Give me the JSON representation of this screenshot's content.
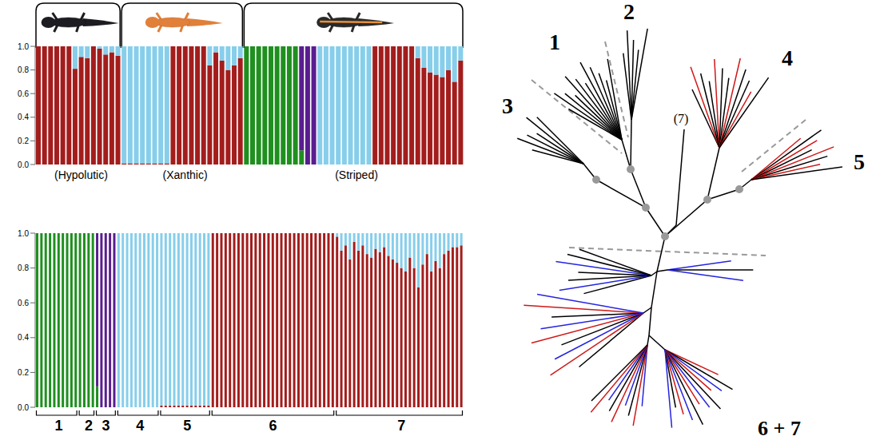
{
  "chart_data": [
    {
      "type": "bar",
      "stacked": true,
      "categories": [
        null,
        null,
        null,
        null,
        null,
        null,
        null,
        "(Hypolutic)",
        null,
        null,
        null,
        null,
        null,
        null,
        null,
        null,
        null,
        null,
        null,
        null,
        null,
        null,
        null,
        null,
        "(Xanthic)",
        null,
        null,
        null,
        null,
        null,
        null,
        null,
        null,
        null,
        null,
        null,
        null,
        null,
        null,
        null,
        null,
        null,
        null,
        null,
        null,
        null,
        null,
        null,
        null,
        null,
        null,
        null,
        "(Striped)",
        null,
        null,
        null,
        null,
        null,
        null,
        null,
        null,
        null,
        null,
        null,
        null,
        null,
        null,
        null,
        null,
        null
      ],
      "ylim": [
        0,
        1
      ],
      "yticks": [
        {
          "value": 0,
          "label": "0.0"
        },
        0.2,
        0.4,
        0.6,
        0.8,
        {
          "value": 1,
          "label": "1.0"
        }
      ],
      "series": [
        {
          "color": "#1f8f1f",
          "values": [
            0,
            0,
            0,
            0,
            0,
            0,
            0,
            0,
            0,
            0,
            0,
            0,
            0,
            0,
            0,
            0,
            0,
            0,
            0,
            0,
            0,
            0,
            0,
            0,
            0,
            0,
            0,
            0,
            0,
            0,
            0,
            0,
            0,
            0,
            1,
            1,
            1,
            1,
            1,
            1,
            1,
            1,
            1,
            0.12,
            0,
            0,
            0,
            0,
            0,
            0,
            0,
            0,
            0,
            0,
            0,
            0,
            0,
            0,
            0,
            0,
            0,
            0,
            0,
            0,
            0,
            0,
            0,
            0,
            0,
            0
          ]
        },
        {
          "color": "#5a1d8f",
          "values": [
            0,
            0,
            0,
            0,
            0,
            0,
            0,
            0,
            0,
            0,
            0,
            0,
            0,
            0,
            0,
            0,
            0,
            0,
            0,
            0,
            0,
            0,
            0,
            0,
            0,
            0,
            0,
            0,
            0,
            0,
            0,
            0,
            0,
            0,
            0,
            0,
            0,
            0,
            0,
            0,
            0,
            0,
            0,
            0.88,
            1,
            1,
            0,
            0,
            0,
            0,
            0,
            0,
            0,
            0,
            0,
            0,
            0,
            0,
            0,
            0,
            0,
            0,
            0,
            0,
            0,
            0,
            0,
            0,
            0,
            0
          ]
        },
        {
          "color": "#a31d1d",
          "values": [
            1,
            1,
            1,
            1,
            1,
            1,
            0.81,
            0.91,
            0.9,
            1,
            0.98,
            0.93,
            0.95,
            0.92,
            0.01,
            0.01,
            0.01,
            0.01,
            0.01,
            0.01,
            0.01,
            0.01,
            1,
            1,
            1,
            1,
            1,
            1,
            0.84,
            0.95,
            0.88,
            0.8,
            0.84,
            0.9,
            0,
            0,
            0,
            0,
            0,
            0,
            0,
            0,
            0,
            0,
            0,
            0,
            0,
            0,
            0,
            0,
            0,
            0,
            0,
            0,
            0,
            1,
            1,
            1,
            1,
            1,
            1,
            1,
            0.9,
            0.82,
            0.78,
            0.76,
            0.74,
            0.8,
            0.7,
            0.88
          ]
        },
        {
          "color": "#87ceeb",
          "values": [
            0,
            0,
            0,
            0,
            0,
            0,
            0.19,
            0.09,
            0.1,
            0,
            0.02,
            0.07,
            0.05,
            0.08,
            0.99,
            0.99,
            0.99,
            0.99,
            0.99,
            0.99,
            0.99,
            0.99,
            0,
            0,
            0,
            0,
            0,
            0,
            0.16,
            0.05,
            0.12,
            0.2,
            0.16,
            0.1,
            0,
            0,
            0,
            0,
            0,
            0,
            0,
            0,
            0,
            0,
            0,
            0,
            1,
            1,
            1,
            1,
            1,
            1,
            1,
            1,
            1,
            0,
            0,
            0,
            0,
            0,
            0,
            0,
            0.1,
            0.18,
            0.22,
            0.24,
            0.26,
            0.2,
            0.3,
            0.12
          ]
        }
      ]
    },
    {
      "type": "bar",
      "stacked": true,
      "categories": [
        null,
        null,
        null,
        null,
        null,
        "1",
        null,
        null,
        null,
        null,
        null,
        null,
        "2",
        null,
        null,
        null,
        "3",
        null,
        null,
        null,
        null,
        null,
        null,
        null,
        "4",
        null,
        null,
        null,
        null,
        null,
        null,
        null,
        null,
        null,
        null,
        "5",
        null,
        null,
        null,
        null,
        null,
        null,
        null,
        null,
        null,
        null,
        null,
        null,
        null,
        null,
        null,
        null,
        null,
        null,
        null,
        "6",
        null,
        null,
        null,
        null,
        null,
        null,
        null,
        null,
        null,
        null,
        null,
        null,
        null,
        null,
        null,
        null,
        null,
        null,
        null,
        null,
        null,
        null,
        null,
        null,
        null,
        null,
        null,
        null,
        null,
        "7",
        null,
        null,
        null,
        null,
        null,
        null,
        null,
        null,
        null,
        null,
        null,
        null,
        null,
        null
      ],
      "ylim": [
        0,
        1
      ],
      "yticks": [
        {
          "value": 0,
          "label": "0.0"
        },
        0.2,
        0.4,
        0.6,
        0.8,
        {
          "value": 1,
          "label": "1.0"
        }
      ],
      "series": [
        {
          "color": "#1f8f1f",
          "values": [
            1,
            1,
            1,
            1,
            1,
            1,
            1,
            1,
            1,
            1,
            1,
            1,
            1,
            1,
            0.12,
            0,
            0,
            0,
            0,
            0,
            0,
            0,
            0,
            0,
            0,
            0,
            0,
            0,
            0,
            0,
            0,
            0,
            0,
            0,
            0,
            0,
            0,
            0,
            0,
            0,
            0,
            0,
            0,
            0,
            0,
            0,
            0,
            0,
            0,
            0,
            0,
            0,
            0,
            0,
            0,
            0,
            0,
            0,
            0,
            0,
            0,
            0,
            0,
            0,
            0,
            0,
            0,
            0,
            0,
            0,
            0,
            0,
            0,
            0,
            0,
            0,
            0,
            0,
            0,
            0,
            0,
            0,
            0,
            0,
            0,
            0,
            0,
            0,
            0,
            0,
            0,
            0,
            0,
            0,
            0,
            0,
            0,
            0,
            0,
            0
          ]
        },
        {
          "color": "#5a1d8f",
          "values": [
            0,
            0,
            0,
            0,
            0,
            0,
            0,
            0,
            0,
            0,
            0,
            0,
            0,
            0,
            0.88,
            1,
            1,
            1,
            1,
            0,
            0,
            0,
            0,
            0,
            0,
            0,
            0,
            0,
            0,
            0,
            0,
            0,
            0,
            0,
            0,
            0,
            0,
            0,
            0,
            0,
            0,
            0,
            0,
            0,
            0,
            0,
            0,
            0,
            0,
            0,
            0,
            0,
            0,
            0,
            0,
            0,
            0,
            0,
            0,
            0,
            0,
            0,
            0,
            0,
            0,
            0,
            0,
            0,
            0,
            0,
            0,
            0,
            0,
            0,
            0,
            0,
            0,
            0,
            0,
            0,
            0,
            0,
            0,
            0,
            0,
            0,
            0,
            0,
            0,
            0,
            0,
            0,
            0,
            0,
            0,
            0,
            0,
            0,
            0,
            0
          ]
        },
        {
          "color": "#a31d1d",
          "values": [
            0,
            0,
            0,
            0,
            0,
            0,
            0,
            0,
            0,
            0,
            0,
            0,
            0,
            0,
            0,
            0,
            0,
            0,
            0,
            0,
            0,
            0,
            0,
            0,
            0,
            0,
            0,
            0,
            0,
            0.01,
            0.01,
            0.01,
            0.01,
            0.01,
            0.01,
            0.01,
            0.01,
            0.01,
            0.01,
            0.01,
            0.01,
            1,
            1,
            1,
            1,
            1,
            1,
            1,
            1,
            1,
            1,
            1,
            1,
            1,
            1,
            1,
            1,
            1,
            1,
            1,
            1,
            1,
            1,
            1,
            1,
            1,
            1,
            1,
            1,
            1,
            0.98,
            0.9,
            0.93,
            0.85,
            0.95,
            0.9,
            0.93,
            0.88,
            0.86,
            0.91,
            0.89,
            0.92,
            0.87,
            0.85,
            0.83,
            0.8,
            0.78,
            0.86,
            0.8,
            0.69,
            0.82,
            0.88,
            0.78,
            0.84,
            0.8,
            0.88,
            0.9,
            0.92,
            0.92,
            0.93
          ]
        },
        {
          "color": "#87ceeb",
          "values": [
            0,
            0,
            0,
            0,
            0,
            0,
            0,
            0,
            0,
            0,
            0,
            0,
            0,
            0,
            0,
            0,
            0,
            0,
            0,
            1,
            1,
            1,
            1,
            1,
            1,
            1,
            1,
            1,
            1,
            0.99,
            0.99,
            0.99,
            0.99,
            0.99,
            0.99,
            0.99,
            0.99,
            0.99,
            0.99,
            0.99,
            0.99,
            0,
            0,
            0,
            0,
            0,
            0,
            0,
            0,
            0,
            0,
            0,
            0,
            0,
            0,
            0,
            0,
            0,
            0,
            0,
            0,
            0,
            0,
            0,
            0,
            0,
            0,
            0,
            0,
            0,
            0.02,
            0.1,
            0.07,
            0.15,
            0.05,
            0.1,
            0.07,
            0.12,
            0.14,
            0.09,
            0.11,
            0.08,
            0.13,
            0.15,
            0.17,
            0.2,
            0.22,
            0.14,
            0.2,
            0.31,
            0.18,
            0.12,
            0.22,
            0.16,
            0.2,
            0.12,
            0.1,
            0.08,
            0.08,
            0.07
          ]
        }
      ]
    }
  ],
  "tree": {
    "labels": [
      "1",
      "2",
      "3",
      "4",
      "5",
      "(7)",
      "6 + 7"
    ]
  }
}
